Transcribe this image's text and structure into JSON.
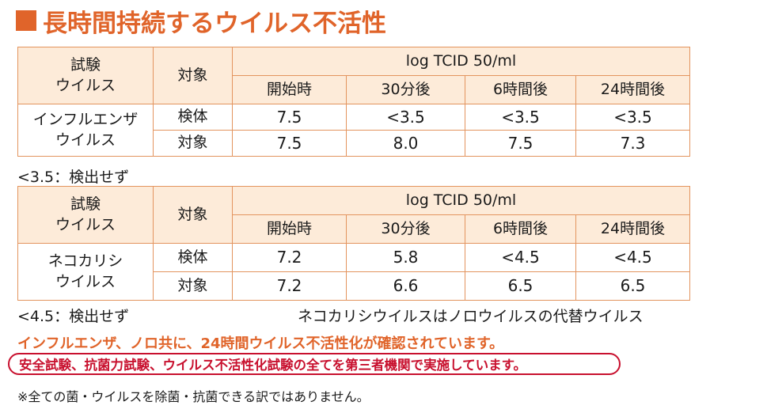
{
  "title": "長時間持続するウイルス不活性",
  "colors": {
    "accent": "#e0642a",
    "header_bg": "#fdebd9",
    "border": "#e3945e",
    "red": "#c8102e"
  },
  "headers": {
    "virus_line1": "試験",
    "virus_line2": "ウイルス",
    "target": "対象",
    "unit": "log TCID 50/ml",
    "times": [
      "開始時",
      "30分後",
      "6時間後",
      "24時間後"
    ]
  },
  "tables": [
    {
      "virus_line1": "インフルエンザ",
      "virus_line2": "ウイルス",
      "rows": [
        {
          "label": "検体",
          "values": [
            "7.5",
            "<3.5",
            "<3.5",
            "<3.5"
          ]
        },
        {
          "label": "対象",
          "values": [
            "7.5",
            "8.0",
            "7.5",
            "7.3"
          ]
        }
      ],
      "note": "<3.5：検出せず"
    },
    {
      "virus_line1": "ネコカリシ",
      "virus_line2": "ウイルス",
      "rows": [
        {
          "label": "検体",
          "values": [
            "7.2",
            "5.8",
            "<4.5",
            "<4.5"
          ]
        },
        {
          "label": "対象",
          "values": [
            "7.2",
            "6.6",
            "6.5",
            "6.5"
          ]
        }
      ],
      "note": "<4.5：検出せず"
    }
  ],
  "substitute_note": "ネコカリシウイルスはノロウイルスの代替ウイルス",
  "conclusion": "インフルエンザ、ノロ共に、24時間ウイルス不活性化が確認されています。",
  "third_party": "安全試験、抗菌力試験、ウイルス不活性化試験の全てを第三者機関で実施しています。",
  "disclaimer": "※全ての菌・ウイルスを除菌・抗菌できる訳ではありません。"
}
